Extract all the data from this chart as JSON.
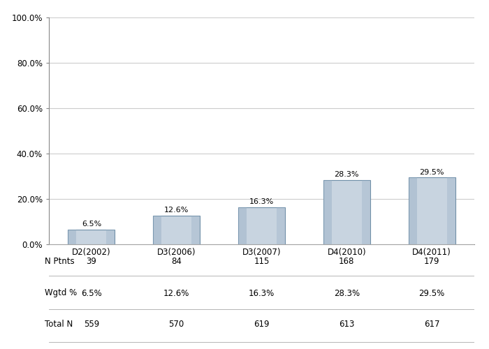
{
  "categories": [
    "D2(2002)",
    "D3(2006)",
    "D3(2007)",
    "D4(2010)",
    "D4(2011)"
  ],
  "values": [
    6.5,
    12.6,
    16.3,
    28.3,
    29.5
  ],
  "labels": [
    "6.5%",
    "12.6%",
    "16.3%",
    "28.3%",
    "29.5%"
  ],
  "n_ptnts": [
    39,
    84,
    115,
    168,
    179
  ],
  "wgtd_pct": [
    "6.5%",
    "12.6%",
    "16.3%",
    "28.3%",
    "29.5%"
  ],
  "total_n": [
    559,
    570,
    619,
    613,
    617
  ],
  "bar_color_light": "#c8d4e0",
  "bar_color_dark": "#8fa8c0",
  "ylim": [
    0,
    100
  ],
  "yticks": [
    0,
    20.0,
    40.0,
    60.0,
    80.0,
    100.0
  ],
  "ytick_labels": [
    "0.0%",
    "20.0%",
    "40.0%",
    "60.0%",
    "80.0%",
    "100.0%"
  ],
  "row_labels": [
    "N Ptnts",
    "Wgtd %",
    "Total N"
  ],
  "background_color": "#ffffff",
  "grid_color": "#cccccc",
  "bar_edge_color": "#7090a8",
  "text_color": "#000000",
  "table_line_color": "#aaaaaa"
}
